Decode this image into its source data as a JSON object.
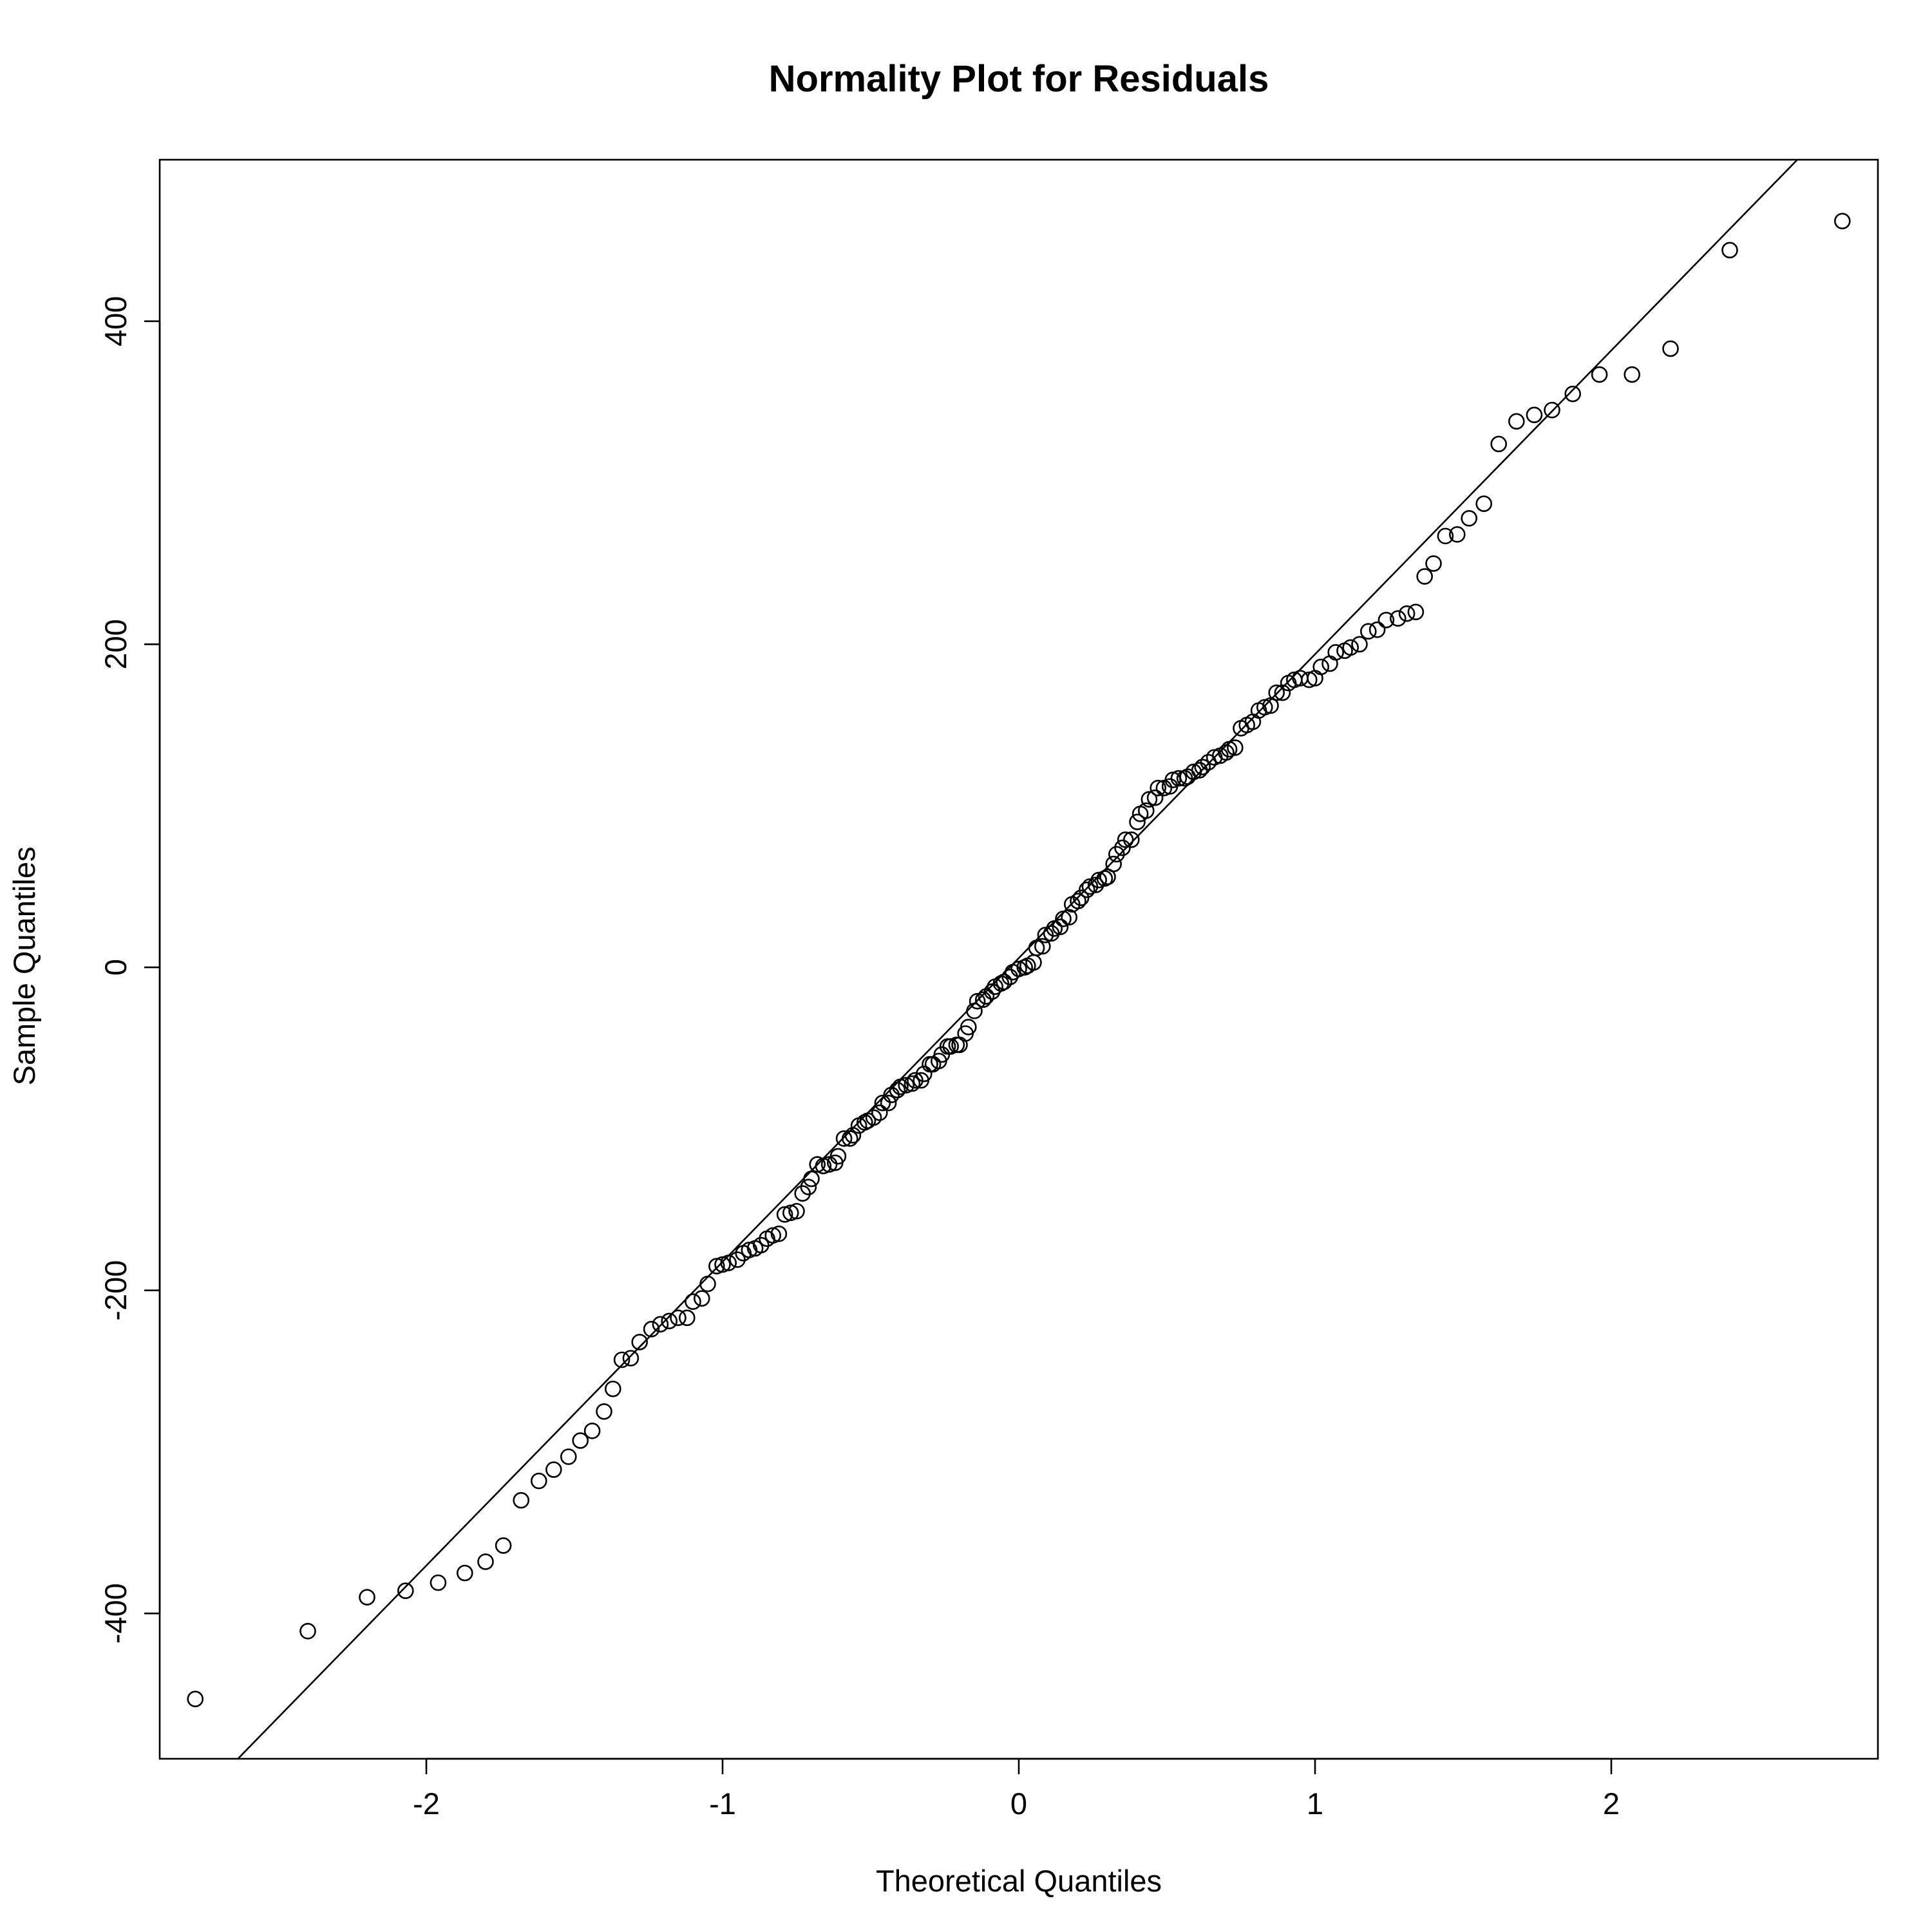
{
  "chart_data": {
    "type": "scatter",
    "title": "Normality Plot for Residuals",
    "xlabel": "Theoretical Quantiles",
    "ylabel": "Sample Quantiles",
    "xlim": [
      -2.9,
      2.9
    ],
    "ylim": [
      -490,
      500
    ],
    "x_ticks": [
      -2,
      -1,
      0,
      1,
      2
    ],
    "x_tick_labels": [
      "-2",
      "-1",
      "0",
      "1",
      "2"
    ],
    "y_ticks": [
      -400,
      -200,
      0,
      200,
      400
    ],
    "y_tick_labels": [
      "-400",
      "-200",
      "0",
      "200",
      "400"
    ],
    "grid": false,
    "marker": "open-circle",
    "reference_line": {
      "x": [
        -2.636,
        2.628
      ],
      "y": [
        -490,
        500
      ]
    },
    "points": [
      [
        -2.78,
        -453
      ],
      [
        -2.4,
        -411
      ],
      [
        -2.2,
        -390
      ],
      [
        -2.07,
        -386
      ],
      [
        -1.96,
        -381
      ],
      [
        -1.87,
        -375
      ],
      [
        -1.8,
        -368
      ],
      [
        -1.74,
        -358
      ],
      [
        -1.68,
        -330
      ],
      [
        -1.62,
        -318
      ],
      [
        -1.57,
        -311
      ],
      [
        -1.52,
        -303
      ],
      [
        -1.48,
        -293
      ],
      [
        -1.44,
        -287
      ],
      [
        -1.4,
        -275
      ],
      [
        -1.37,
        -261
      ],
      [
        -1.34,
        -243
      ],
      [
        -1.31,
        -242
      ],
      [
        -1.28,
        -232
      ],
      [
        -1.24,
        -224
      ],
      [
        -1.21,
        -221
      ],
      [
        -1.18,
        -219
      ],
      [
        -1.15,
        -217
      ],
      [
        -1.12,
        -217
      ],
      [
        -1.1,
        -207
      ],
      [
        -1.07,
        -205
      ],
      [
        -1.05,
        -196
      ],
      [
        -1.02,
        -185
      ],
      [
        -1.0,
        -184
      ],
      [
        -0.98,
        -183
      ],
      [
        -0.95,
        -181
      ],
      [
        -0.93,
        -177
      ],
      [
        -0.91,
        -175
      ],
      [
        -0.89,
        -174
      ],
      [
        -0.87,
        -172
      ],
      [
        -0.85,
        -168
      ],
      [
        -0.83,
        -166
      ],
      [
        -0.81,
        -165
      ],
      [
        -0.79,
        -153
      ],
      [
        -0.77,
        -152
      ],
      [
        -0.75,
        -151
      ],
      [
        -0.73,
        -140
      ],
      [
        -0.71,
        -136
      ],
      [
        -0.7,
        -131
      ],
      [
        -0.68,
        -122
      ],
      [
        -0.66,
        -123
      ],
      [
        -0.64,
        -122
      ],
      [
        -0.62,
        -121
      ],
      [
        -0.61,
        -117
      ],
      [
        -0.59,
        -106
      ],
      [
        -0.57,
        -106
      ],
      [
        -0.56,
        -104
      ],
      [
        -0.54,
        -98
      ],
      [
        -0.52,
        -96
      ],
      [
        -0.51,
        -95
      ],
      [
        -0.49,
        -93
      ],
      [
        -0.47,
        -90
      ],
      [
        -0.46,
        -84
      ],
      [
        -0.44,
        -84
      ],
      [
        -0.43,
        -79
      ],
      [
        -0.41,
        -76
      ],
      [
        -0.4,
        -74
      ],
      [
        -0.38,
        -73
      ],
      [
        -0.36,
        -72
      ],
      [
        -0.35,
        -70
      ],
      [
        -0.33,
        -70
      ],
      [
        -0.32,
        -66
      ],
      [
        -0.3,
        -60
      ],
      [
        -0.29,
        -60
      ],
      [
        -0.27,
        -58
      ],
      [
        -0.26,
        -54
      ],
      [
        -0.24,
        -49
      ],
      [
        -0.23,
        -49
      ],
      [
        -0.21,
        -48
      ],
      [
        -0.2,
        -48
      ],
      [
        -0.18,
        -41
      ],
      [
        -0.17,
        -37
      ],
      [
        -0.15,
        -27
      ],
      [
        -0.14,
        -21
      ],
      [
        -0.12,
        -20
      ],
      [
        -0.11,
        -18
      ],
      [
        -0.09,
        -15
      ],
      [
        -0.08,
        -12
      ],
      [
        -0.06,
        -10
      ],
      [
        -0.05,
        -9
      ],
      [
        -0.03,
        -6
      ],
      [
        -0.02,
        -3
      ],
      [
        0.0,
        -1
      ],
      [
        0.02,
        0
      ],
      [
        0.03,
        1
      ],
      [
        0.05,
        3
      ],
      [
        0.06,
        12
      ],
      [
        0.08,
        13
      ],
      [
        0.09,
        20
      ],
      [
        0.11,
        21
      ],
      [
        0.12,
        24
      ],
      [
        0.14,
        25
      ],
      [
        0.15,
        30
      ],
      [
        0.17,
        31
      ],
      [
        0.18,
        39
      ],
      [
        0.2,
        41
      ],
      [
        0.21,
        43
      ],
      [
        0.23,
        48
      ],
      [
        0.24,
        50
      ],
      [
        0.26,
        51
      ],
      [
        0.27,
        54
      ],
      [
        0.29,
        55
      ],
      [
        0.3,
        56
      ],
      [
        0.32,
        64
      ],
      [
        0.33,
        70
      ],
      [
        0.35,
        74
      ],
      [
        0.36,
        79
      ],
      [
        0.38,
        79
      ],
      [
        0.4,
        90
      ],
      [
        0.41,
        95
      ],
      [
        0.43,
        97
      ],
      [
        0.44,
        104
      ],
      [
        0.46,
        105
      ],
      [
        0.47,
        111
      ],
      [
        0.49,
        111
      ],
      [
        0.51,
        112
      ],
      [
        0.52,
        116
      ],
      [
        0.54,
        117
      ],
      [
        0.56,
        117
      ],
      [
        0.57,
        118
      ],
      [
        0.59,
        121
      ],
      [
        0.61,
        122
      ],
      [
        0.62,
        124
      ],
      [
        0.64,
        127
      ],
      [
        0.66,
        130
      ],
      [
        0.68,
        131
      ],
      [
        0.7,
        133
      ],
      [
        0.71,
        135
      ],
      [
        0.73,
        136
      ],
      [
        0.75,
        148
      ],
      [
        0.77,
        150
      ],
      [
        0.79,
        152
      ],
      [
        0.81,
        159
      ],
      [
        0.83,
        161
      ],
      [
        0.85,
        162
      ],
      [
        0.87,
        170
      ],
      [
        0.89,
        170
      ],
      [
        0.91,
        176
      ],
      [
        0.93,
        178
      ],
      [
        0.95,
        179
      ],
      [
        0.98,
        178
      ],
      [
        1.0,
        179
      ],
      [
        1.02,
        186
      ],
      [
        1.05,
        188
      ],
      [
        1.07,
        195
      ],
      [
        1.1,
        196
      ],
      [
        1.12,
        198
      ],
      [
        1.15,
        200
      ],
      [
        1.18,
        208
      ],
      [
        1.21,
        209
      ],
      [
        1.24,
        215
      ],
      [
        1.28,
        216
      ],
      [
        1.31,
        219
      ],
      [
        1.34,
        220
      ],
      [
        1.37,
        242
      ],
      [
        1.4,
        250
      ],
      [
        1.44,
        267
      ],
      [
        1.48,
        268
      ],
      [
        1.52,
        278
      ],
      [
        1.57,
        287
      ],
      [
        1.62,
        324
      ],
      [
        1.68,
        338
      ],
      [
        1.74,
        342
      ],
      [
        1.8,
        345
      ],
      [
        1.87,
        355
      ],
      [
        1.96,
        367
      ],
      [
        2.07,
        367
      ],
      [
        2.2,
        383
      ],
      [
        2.4,
        444
      ],
      [
        2.78,
        462
      ]
    ]
  }
}
